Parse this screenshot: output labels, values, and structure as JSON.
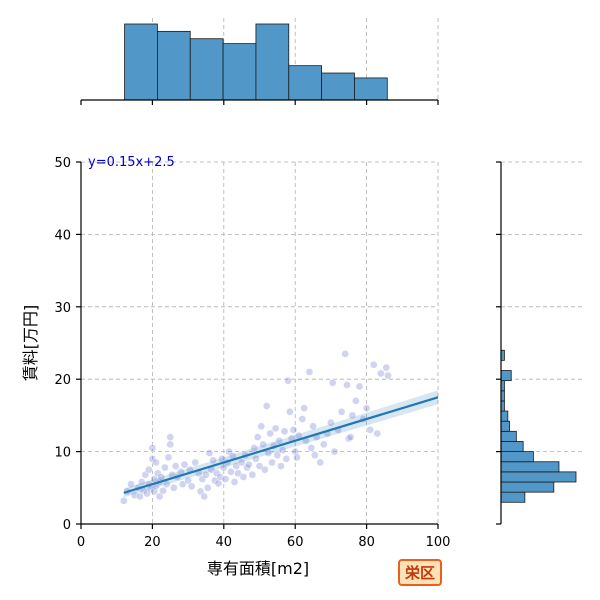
{
  "chart_data": {
    "type": "scatter",
    "xlabel": "専有面積[m2]",
    "ylabel": "賃料[万円]",
    "xlim": [
      0,
      100
    ],
    "ylim": [
      0,
      50
    ],
    "xticks": [
      0,
      20,
      40,
      60,
      80,
      100
    ],
    "yticks": [
      0,
      10,
      20,
      30,
      40,
      50
    ],
    "grid": true,
    "annotation": "y=0.15x+2.5",
    "badge": "栄区",
    "colors": {
      "points": "#7b84d6",
      "regression": "#1f77b4",
      "histogram": "#5197c7",
      "annotation": "#0000cc",
      "badge_border": "#e8601c",
      "badge_fill": "#ffe2b8"
    },
    "regression": {
      "slope": 0.15,
      "intercept": 2.5,
      "x_range": [
        12,
        100
      ]
    },
    "x_histogram": {
      "bin_edges": [
        12.2,
        21.4,
        30.6,
        39.8,
        49.0,
        58.2,
        67.4,
        76.6,
        85.8
      ],
      "counts": [
        31,
        28,
        25,
        23,
        31,
        14,
        11,
        9
      ]
    },
    "y_histogram": {
      "bin_edges": [
        3.0,
        4.4,
        5.8,
        7.2,
        8.6,
        10.0,
        11.4,
        12.8,
        14.2,
        15.6,
        17.0,
        18.4,
        19.8,
        21.2,
        22.6,
        24.0
      ],
      "counts": [
        14,
        31,
        44,
        34,
        19,
        13,
        9,
        5,
        4,
        2,
        2,
        2,
        6,
        0,
        2
      ]
    },
    "points": [
      [
        12,
        3.2
      ],
      [
        13,
        4.5
      ],
      [
        14,
        5.5
      ],
      [
        15,
        4.0
      ],
      [
        16,
        5.0
      ],
      [
        16.5,
        3.8
      ],
      [
        17,
        5.8
      ],
      [
        17.5,
        4.6
      ],
      [
        18,
        6.8
      ],
      [
        18.5,
        4.2
      ],
      [
        19,
        5.5
      ],
      [
        19,
        7.5
      ],
      [
        19.5,
        4.8
      ],
      [
        20,
        10.5
      ],
      [
        20,
        9.0
      ],
      [
        20.5,
        6.2
      ],
      [
        20.5,
        4.5
      ],
      [
        21,
        5.2
      ],
      [
        21,
        8.5
      ],
      [
        21.5,
        7.0
      ],
      [
        22,
        5.8
      ],
      [
        22,
        3.8
      ],
      [
        22.5,
        6.5
      ],
      [
        23,
        4.6
      ],
      [
        23.5,
        7.8
      ],
      [
        24,
        5.5
      ],
      [
        24.5,
        9.2
      ],
      [
        25,
        11.0
      ],
      [
        25,
        12.0
      ],
      [
        25.5,
        6.8
      ],
      [
        26,
        5.0
      ],
      [
        26.5,
        8.0
      ],
      [
        27,
        6.5
      ],
      [
        28,
        7.2
      ],
      [
        28.5,
        5.5
      ],
      [
        29,
        8.2
      ],
      [
        30,
        6.0
      ],
      [
        30.5,
        7.5
      ],
      [
        31,
        5.2
      ],
      [
        32,
        8.5
      ],
      [
        33,
        7.0
      ],
      [
        33.5,
        4.5
      ],
      [
        34,
        6.2
      ],
      [
        34.5,
        3.8
      ],
      [
        35,
        6.8
      ],
      [
        35.5,
        5.0
      ],
      [
        36,
        9.8
      ],
      [
        36.5,
        7.5
      ],
      [
        37,
        8.8
      ],
      [
        37.5,
        6.0
      ],
      [
        38,
        7.0
      ],
      [
        38.5,
        5.6
      ],
      [
        39,
        6.5
      ],
      [
        39.5,
        9.0
      ],
      [
        40,
        7.8
      ],
      [
        40.5,
        6.2
      ],
      [
        41,
        8.5
      ],
      [
        41.5,
        10.0
      ],
      [
        42,
        7.2
      ],
      [
        42.5,
        9.4
      ],
      [
        43,
        5.8
      ],
      [
        43.5,
        8.0
      ],
      [
        44,
        7.0
      ],
      [
        45,
        8.5
      ],
      [
        45.5,
        6.5
      ],
      [
        46,
        9.5
      ],
      [
        46.5,
        7.8
      ],
      [
        47,
        8.2
      ],
      [
        48,
        6.8
      ],
      [
        48.5,
        10.5
      ],
      [
        49,
        9.0
      ],
      [
        49.5,
        12.0
      ],
      [
        50,
        8.0
      ],
      [
        50.5,
        13.5
      ],
      [
        51,
        11.0
      ],
      [
        51.5,
        7.5
      ],
      [
        52,
        16.3
      ],
      [
        52.5,
        9.8
      ],
      [
        53,
        12.5
      ],
      [
        53.5,
        8.5
      ],
      [
        54,
        10.8
      ],
      [
        54.5,
        13.2
      ],
      [
        55,
        9.5
      ],
      [
        55.5,
        11.5
      ],
      [
        56,
        8.0
      ],
      [
        56.5,
        10.2
      ],
      [
        57,
        12.8
      ],
      [
        57.5,
        9.0
      ],
      [
        58,
        19.8
      ],
      [
        58.5,
        15.5
      ],
      [
        59,
        11.8
      ],
      [
        59.5,
        13.0
      ],
      [
        60,
        10.0
      ],
      [
        60.5,
        9.2
      ],
      [
        61,
        12.2
      ],
      [
        62,
        14.5
      ],
      [
        62.5,
        16.0
      ],
      [
        63,
        11.5
      ],
      [
        64,
        21.0
      ],
      [
        64.5,
        10.5
      ],
      [
        65,
        13.5
      ],
      [
        65.5,
        9.5
      ],
      [
        66,
        12.0
      ],
      [
        67,
        8.5
      ],
      [
        68,
        11.0
      ],
      [
        69,
        12.5
      ],
      [
        70,
        14.0
      ],
      [
        70.5,
        19.5
      ],
      [
        71,
        10.0
      ],
      [
        72,
        13.0
      ],
      [
        73,
        15.5
      ],
      [
        74,
        23.5
      ],
      [
        74.5,
        19.2
      ],
      [
        75,
        11.8
      ],
      [
        75.5,
        12.0
      ],
      [
        76,
        15.0
      ],
      [
        77,
        17.0
      ],
      [
        78,
        19.0
      ],
      [
        79,
        14.5
      ],
      [
        80,
        16.0
      ],
      [
        81,
        13.0
      ],
      [
        82,
        22.0
      ],
      [
        83,
        12.5
      ],
      [
        84,
        20.8
      ],
      [
        85.5,
        21.6
      ],
      [
        86,
        20.5
      ]
    ]
  }
}
